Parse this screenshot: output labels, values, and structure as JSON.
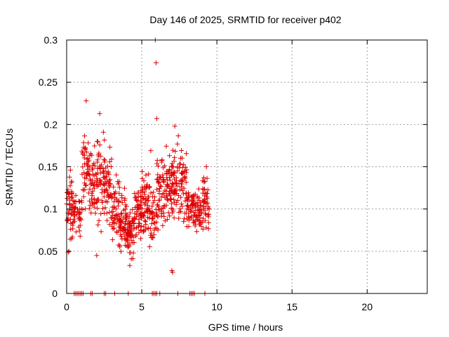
{
  "chart_data": {
    "type": "scatter",
    "title": "Day 146 of 2025, SRMTID for receiver p402",
    "xlabel": "GPS time / hours",
    "ylabel": "SRMTID / TECUs",
    "xlim": [
      0,
      24
    ],
    "ylim": [
      0,
      0.3
    ],
    "xticks": [
      0,
      5,
      10,
      15,
      20
    ],
    "xtick_labels": [
      "0",
      "5",
      "10",
      "15",
      "20"
    ],
    "yticks": [
      0,
      0.05,
      0.1,
      0.15,
      0.2,
      0.25,
      0.3
    ],
    "ytick_labels": [
      "0",
      "0.05",
      "0.1",
      "0.15",
      "0.2",
      "0.25",
      "0.3"
    ],
    "grid": true,
    "marker": "+",
    "series_color": "#e00000",
    "series": [
      {
        "name": "SRMTID",
        "clusters": [
          {
            "x_range": [
              0.0,
              0.4
            ],
            "y_range": [
              0.05,
              0.16
            ],
            "n": 45
          },
          {
            "x_range": [
              0.4,
              1.0
            ],
            "y_range": [
              0.06,
              0.13
            ],
            "n": 40
          },
          {
            "x_range": [
              1.0,
              1.5
            ],
            "y_range": [
              0.08,
              0.21
            ],
            "n": 45
          },
          {
            "x_range": [
              1.5,
              2.0
            ],
            "y_range": [
              0.06,
              0.19
            ],
            "n": 45
          },
          {
            "x_range": [
              2.0,
              2.5
            ],
            "y_range": [
              0.05,
              0.21
            ],
            "n": 50
          },
          {
            "x_range": [
              2.5,
              3.0
            ],
            "y_range": [
              0.06,
              0.2
            ],
            "n": 50
          },
          {
            "x_range": [
              3.0,
              3.5
            ],
            "y_range": [
              0.05,
              0.15
            ],
            "n": 50
          },
          {
            "x_range": [
              3.5,
              4.0
            ],
            "y_range": [
              0.04,
              0.13
            ],
            "n": 60
          },
          {
            "x_range": [
              4.0,
              4.5
            ],
            "y_range": [
              0.035,
              0.11
            ],
            "n": 60
          },
          {
            "x_range": [
              4.5,
              5.0
            ],
            "y_range": [
              0.05,
              0.14
            ],
            "n": 55
          },
          {
            "x_range": [
              5.0,
              5.5
            ],
            "y_range": [
              0.05,
              0.16
            ],
            "n": 55
          },
          {
            "x_range": [
              5.5,
              6.0
            ],
            "y_range": [
              0.04,
              0.14
            ],
            "n": 40
          },
          {
            "x_range": [
              6.0,
              6.5
            ],
            "y_range": [
              0.06,
              0.18
            ],
            "n": 50
          },
          {
            "x_range": [
              6.5,
              7.0
            ],
            "y_range": [
              0.07,
              0.19
            ],
            "n": 50
          },
          {
            "x_range": [
              7.0,
              7.5
            ],
            "y_range": [
              0.06,
              0.2
            ],
            "n": 50
          },
          {
            "x_range": [
              7.5,
              8.0
            ],
            "y_range": [
              0.07,
              0.18
            ],
            "n": 45
          },
          {
            "x_range": [
              8.0,
              8.5
            ],
            "y_range": [
              0.07,
              0.14
            ],
            "n": 45
          },
          {
            "x_range": [
              8.5,
              9.0
            ],
            "y_range": [
              0.06,
              0.13
            ],
            "n": 45
          },
          {
            "x_range": [
              9.0,
              9.5
            ],
            "y_range": [
              0.06,
              0.15
            ],
            "n": 45
          }
        ],
        "points": [
          {
            "x": 5.9,
            "y": 0.3
          },
          {
            "x": 5.95,
            "y": 0.273
          },
          {
            "x": 1.3,
            "y": 0.228
          },
          {
            "x": 2.2,
            "y": 0.213
          },
          {
            "x": 6.0,
            "y": 0.207
          },
          {
            "x": 7.2,
            "y": 0.198
          },
          {
            "x": 7.0,
            "y": 0.027
          },
          {
            "x": 7.05,
            "y": 0.025
          },
          {
            "x": 0.1,
            "y": 0.049
          },
          {
            "x": 0.15,
            "y": 0.05
          },
          {
            "x": 4.2,
            "y": 0.033
          },
          {
            "x": 2.0,
            "y": 0.045
          },
          {
            "x": 5.6,
            "y": 0.169
          },
          {
            "x": 9.3,
            "y": 0.15
          }
        ],
        "zero_points_x": [
          0.5,
          0.6,
          0.7,
          0.8,
          0.9,
          1.0,
          1.1,
          1.6,
          1.7,
          2.5,
          2.6,
          3.2,
          4.1,
          5.7,
          5.8,
          5.9,
          6.0,
          6.2,
          7.4,
          8.2,
          8.3,
          8.4,
          8.5,
          9.2
        ]
      }
    ]
  }
}
